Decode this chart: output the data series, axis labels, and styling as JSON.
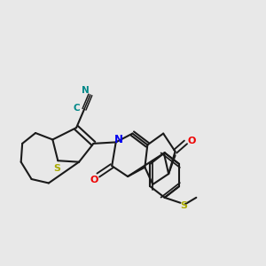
{
  "background_color": "#e8e8e8",
  "fig_width": 3.0,
  "fig_height": 3.0,
  "dpi": 100,
  "bond_color": "#1a1a1a",
  "line_width": 1.5,
  "atom_colors": {
    "N": "#0000ee",
    "O": "#ee0000",
    "S": "#aaaa00",
    "CN_C": "#008888",
    "CN_N": "#008888"
  }
}
